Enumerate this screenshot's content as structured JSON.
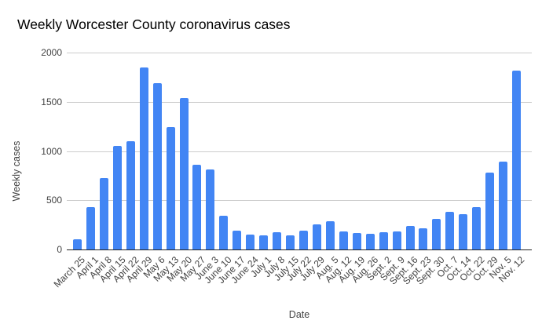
{
  "chart_data": {
    "type": "bar",
    "title": "Weekly Worcester County coronavirus cases",
    "xlabel": "Date",
    "ylabel": "Weekly cases",
    "ylim": [
      0,
      2000
    ],
    "yticks": [
      0,
      500,
      1000,
      1500,
      2000
    ],
    "grid": true,
    "legend": "none",
    "categories": [
      "March 25",
      "April 1",
      "April 8",
      "April 15",
      "April 22",
      "April 29",
      "May 6",
      "May 13",
      "May 20",
      "May 27",
      "June 3",
      "June 10",
      "June 17",
      "June 24",
      "July 1",
      "July 8",
      "July 15",
      "July 22",
      "July 29",
      "Aug. 5",
      "Aug. 12",
      "Aug. 19",
      "Aug. 26",
      "Sept. 2",
      "Sept. 9",
      "Sept. 16",
      "Sept. 23",
      "Sept. 30",
      "Oct. 7",
      "Oct. 14",
      "Oct. 22",
      "Oct. 29",
      "Nov. 5",
      "Nov. 12"
    ],
    "values": [
      100,
      430,
      725,
      1050,
      1100,
      1845,
      1690,
      1240,
      1535,
      860,
      810,
      345,
      195,
      155,
      145,
      175,
      145,
      190,
      255,
      285,
      180,
      165,
      160,
      175,
      185,
      240,
      215,
      310,
      380,
      355,
      430,
      780,
      895,
      1820
    ],
    "colors": {
      "bar": "#4285f4",
      "gridline": "#cccccc",
      "axis_line": "#212121",
      "tick_text": "#424242",
      "title_text": "#000000",
      "background": "#ffffff"
    }
  }
}
